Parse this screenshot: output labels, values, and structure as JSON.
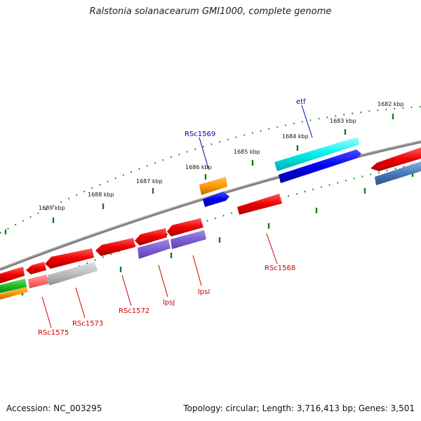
{
  "title": "Ralstonia solanacearum GMI1000, complete genome",
  "footer": {
    "accession": "Accession: NC_003295",
    "topology": "Topology: circular; Length: 3,716,413 bp; Genes: 3,501"
  },
  "colors": {
    "backbone": "#888888",
    "tick": "#1a7a1a",
    "red": "#ee0000",
    "blue": "#0000ee",
    "cyan": "#00eeee",
    "orange": "#ff9900",
    "purple": "#7a60d0",
    "grey": "#b8b8b8",
    "pink": "#ff7070",
    "green": "#22bb22",
    "steelblue": "#4a7ab8",
    "label_red": "#cc0000",
    "label_blue": "#0000aa"
  },
  "kbp_labels": [
    "1689 kbp",
    "1688 kbp",
    "1687 kbp",
    "1686 kbp",
    "1685 kbp",
    "1684 kbp",
    "1683 kbp",
    "1682 kbp"
  ],
  "gene_labels": {
    "rsc1569": "RSc1569",
    "etf": "etf",
    "rsc1568": "RSc1568",
    "lpsi": "lpsI",
    "lpsj": "lpsJ",
    "rsc1572": "RSc1572",
    "rsc1573": "RSc1573",
    "rsc1575": "RSc1575"
  }
}
